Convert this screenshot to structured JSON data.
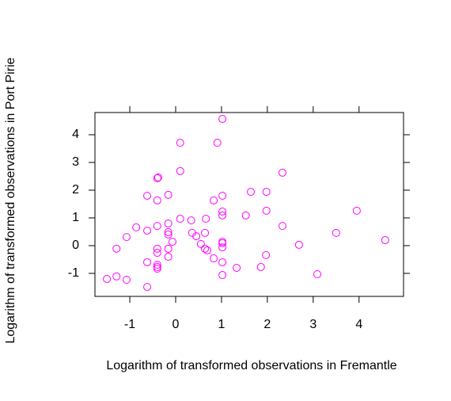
{
  "chart_data": {
    "type": "scatter",
    "xlabel": "Logarithm of transformed observations in Fremantle",
    "ylabel": "Logarithm of transformed observations in Port Pirie",
    "xlim": [
      -1.76,
      4.97
    ],
    "ylim": [
      -1.83,
      4.8
    ],
    "xticks": [
      -1,
      0,
      1,
      2,
      3,
      4
    ],
    "yticks": [
      -1,
      0,
      1,
      2,
      3,
      4
    ],
    "color": "#ff00ff",
    "x": [
      1.02,
      0.1,
      0.91,
      0.1,
      2.33,
      -0.38,
      -0.4,
      1.64,
      1.98,
      -0.16,
      -0.62,
      1.02,
      -0.4,
      0.83,
      1.02,
      1.98,
      3.95,
      1.02,
      1.53,
      0.1,
      0.66,
      0.34,
      -0.86,
      -0.4,
      -0.16,
      2.33,
      -0.62,
      -0.16,
      -0.16,
      0.36,
      0.64,
      3.5,
      0.45,
      -1.07,
      -0.07,
      1.02,
      1.02,
      4.57,
      0.55,
      2.69,
      1.02,
      -1.29,
      -0.4,
      -0.16,
      0.64,
      0.69,
      -0.4,
      1.97,
      -0.16,
      0.83,
      -0.62,
      1.02,
      -0.4,
      -0.4,
      -0.4,
      1.33,
      1.86,
      3.09,
      1.02,
      -1.29,
      -1.5,
      -1.07,
      -0.62
    ],
    "y": [
      4.57,
      3.71,
      3.71,
      2.69,
      2.63,
      2.46,
      2.43,
      1.94,
      1.94,
      1.83,
      1.8,
      1.8,
      1.63,
      1.63,
      1.23,
      1.26,
      1.26,
      1.09,
      1.09,
      0.97,
      0.97,
      0.91,
      0.66,
      0.71,
      0.8,
      0.71,
      0.54,
      0.49,
      0.4,
      0.46,
      0.46,
      0.46,
      0.34,
      0.31,
      0.14,
      0.14,
      0.09,
      0.2,
      0.06,
      0.03,
      -0.06,
      -0.11,
      -0.11,
      -0.11,
      -0.11,
      -0.17,
      -0.26,
      -0.34,
      -0.4,
      -0.46,
      -0.6,
      -0.6,
      -0.69,
      -0.77,
      -0.83,
      -0.8,
      -0.77,
      -1.03,
      -1.06,
      -1.11,
      -1.2,
      -1.23,
      -1.49
    ]
  }
}
